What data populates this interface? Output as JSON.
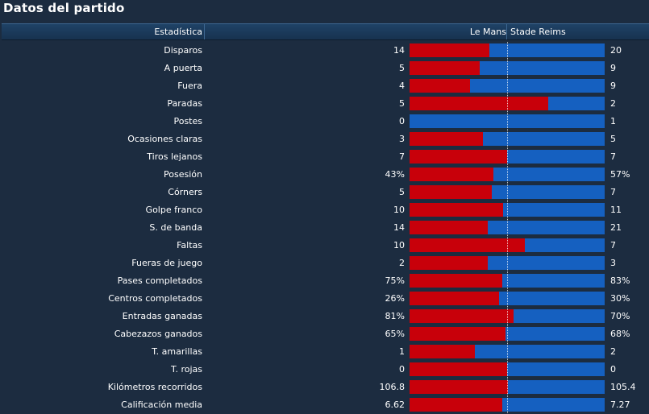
{
  "title": "Datos del partido",
  "header": {
    "stat": "Estadística",
    "home": "Le Mans",
    "away": "Stade Reims"
  },
  "colors": {
    "home_bar": "#c8000a",
    "away_bar": "#1560c0",
    "background": "#1c2c40"
  },
  "rows": [
    {
      "label": "Disparos",
      "home": "14",
      "away": "20",
      "home_share": 0.41
    },
    {
      "label": "A puerta",
      "home": "5",
      "away": "9",
      "home_share": 0.36
    },
    {
      "label": "Fuera",
      "home": "4",
      "away": "9",
      "home_share": 0.31
    },
    {
      "label": "Paradas",
      "home": "5",
      "away": "2",
      "home_share": 0.71
    },
    {
      "label": "Postes",
      "home": "0",
      "away": "1",
      "home_share": 0.0
    },
    {
      "label": "Ocasiones claras",
      "home": "3",
      "away": "5",
      "home_share": 0.375
    },
    {
      "label": "Tiros lejanos",
      "home": "7",
      "away": "7",
      "home_share": 0.5
    },
    {
      "label": "Posesión",
      "home": "43%",
      "away": "57%",
      "home_share": 0.43
    },
    {
      "label": "Córners",
      "home": "5",
      "away": "7",
      "home_share": 0.42
    },
    {
      "label": "Golpe franco",
      "home": "10",
      "away": "11",
      "home_share": 0.48
    },
    {
      "label": "S. de banda",
      "home": "14",
      "away": "21",
      "home_share": 0.4
    },
    {
      "label": "Faltas",
      "home": "10",
      "away": "7",
      "home_share": 0.59
    },
    {
      "label": "Fueras de juego",
      "home": "2",
      "away": "3",
      "home_share": 0.4
    },
    {
      "label": "Pases completados",
      "home": "75%",
      "away": "83%",
      "home_share": 0.475
    },
    {
      "label": "Centros completados",
      "home": "26%",
      "away": "30%",
      "home_share": 0.46
    },
    {
      "label": "Entradas ganadas",
      "home": "81%",
      "away": "70%",
      "home_share": 0.535
    },
    {
      "label": "Cabezazos ganados",
      "home": "65%",
      "away": "68%",
      "home_share": 0.49
    },
    {
      "label": "T. amarillas",
      "home": "1",
      "away": "2",
      "home_share": 0.335
    },
    {
      "label": "T. rojas",
      "home": "0",
      "away": "0",
      "home_share": 0.5
    },
    {
      "label": "Kilómetros recorridos",
      "home": "106.8",
      "away": "105.4",
      "home_share": 0.503
    },
    {
      "label": "Calificación media",
      "home": "6.62",
      "away": "7.27",
      "home_share": 0.476
    }
  ]
}
